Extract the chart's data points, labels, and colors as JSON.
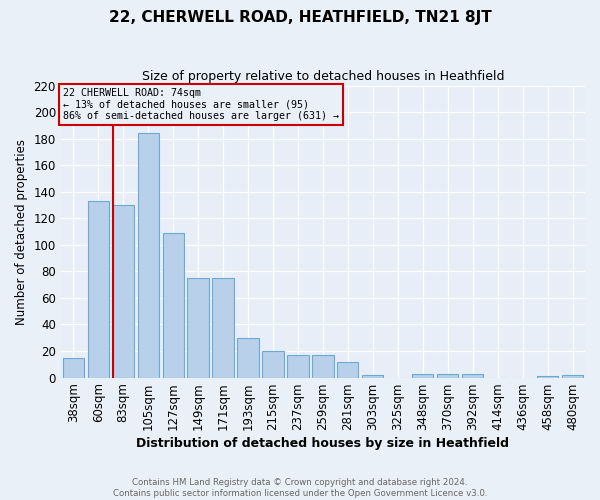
{
  "title": "22, CHERWELL ROAD, HEATHFIELD, TN21 8JT",
  "subtitle": "Size of property relative to detached houses in Heathfield",
  "xlabel": "Distribution of detached houses by size in Heathfield",
  "ylabel": "Number of detached properties",
  "bin_labels": [
    "38sqm",
    "60sqm",
    "83sqm",
    "105sqm",
    "127sqm",
    "149sqm",
    "171sqm",
    "193sqm",
    "215sqm",
    "237sqm",
    "259sqm",
    "281sqm",
    "303sqm",
    "325sqm",
    "348sqm",
    "370sqm",
    "392sqm",
    "414sqm",
    "436sqm",
    "458sqm",
    "480sqm"
  ],
  "heights": [
    15,
    133,
    130,
    184,
    109,
    75,
    75,
    30,
    20,
    17,
    17,
    12,
    2,
    0,
    3,
    3,
    3,
    0,
    0,
    1,
    2
  ],
  "bar_color": "#b8d0ea",
  "bar_edge_color": "#6aaad4",
  "property_bin_index": 1,
  "property_label": "22 CHERWELL ROAD: 74sqm",
  "annotation_line1": "← 13% of detached houses are smaller (95)",
  "annotation_line2": "86% of semi-detached houses are larger (631) →",
  "vline_color": "#cc0000",
  "annotation_box_edge": "#cc0000",
  "ylim": [
    0,
    220
  ],
  "yticks": [
    0,
    20,
    40,
    60,
    80,
    100,
    120,
    140,
    160,
    180,
    200,
    220
  ],
  "bg_color": "#eaf0f8",
  "plot_bg_color": "#e8eef8",
  "grid_color": "#ffffff",
  "footer_line1": "Contains HM Land Registry data © Crown copyright and database right 2024.",
  "footer_line2": "Contains public sector information licensed under the Open Government Licence v3.0."
}
